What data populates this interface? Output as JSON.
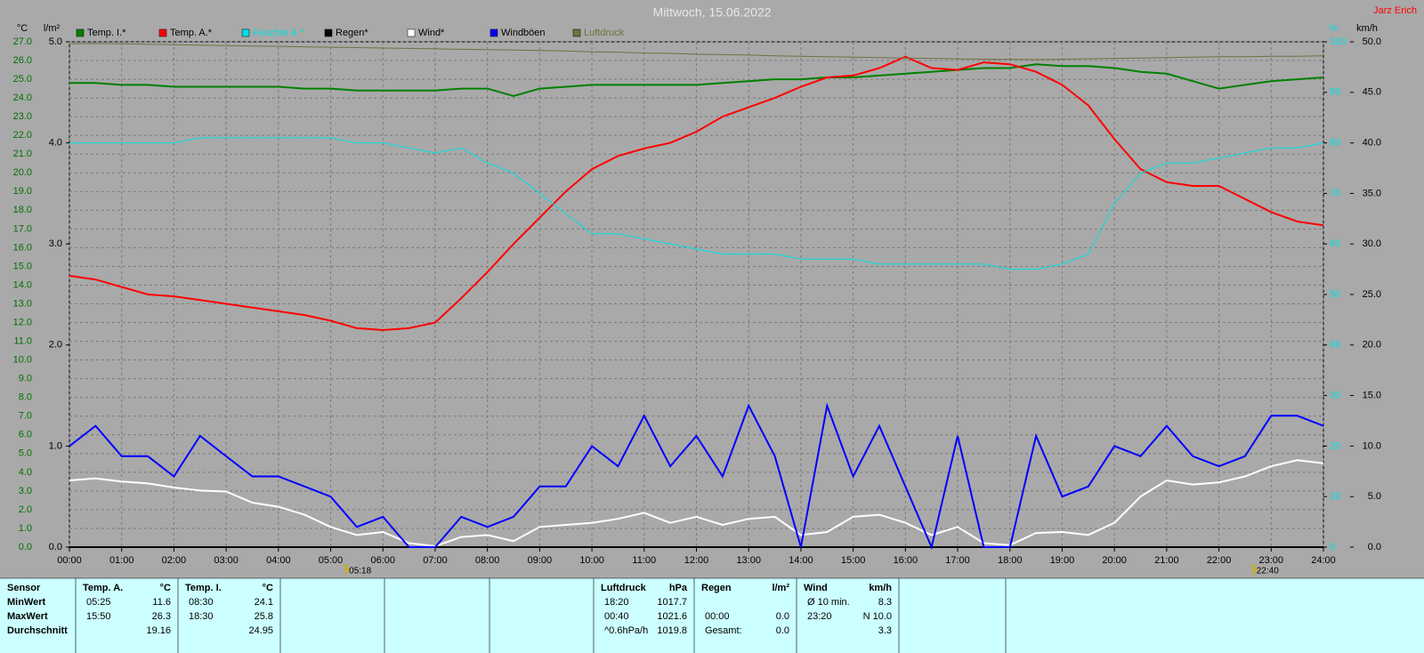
{
  "chart_data": {
    "type": "line",
    "title": "Mittwoch, 15.06.2022",
    "author": "Jarz Erich",
    "x": [
      0,
      0.5,
      1,
      1.5,
      2,
      2.5,
      3,
      3.5,
      4,
      4.5,
      5,
      5.5,
      6,
      6.5,
      7,
      7.5,
      8,
      8.5,
      9,
      9.5,
      10,
      10.5,
      11,
      11.5,
      12,
      12.5,
      13,
      13.5,
      14,
      14.5,
      15,
      15.5,
      16,
      16.5,
      17,
      17.5,
      18,
      18.5,
      19,
      19.5,
      20,
      20.5,
      21,
      21.5,
      22,
      22.5,
      23,
      23.5,
      24
    ],
    "xlim": [
      0,
      24
    ],
    "xticks": [
      {
        "value": 0,
        "label": "00:00"
      },
      {
        "value": 1,
        "label": "01:00"
      },
      {
        "value": 2,
        "label": "02:00"
      },
      {
        "value": 3,
        "label": "03:00"
      },
      {
        "value": 4,
        "label": "04:00"
      },
      {
        "value": 5,
        "label": "05:00"
      },
      {
        "value": 6,
        "label": "06:00"
      },
      {
        "value": 7,
        "label": "07:00"
      },
      {
        "value": 8,
        "label": "08:00"
      },
      {
        "value": 9,
        "label": "09:00"
      },
      {
        "value": 10,
        "label": "10:00"
      },
      {
        "value": 11,
        "label": "11:00"
      },
      {
        "value": 12,
        "label": "12:00"
      },
      {
        "value": 13,
        "label": "13:00"
      },
      {
        "value": 14,
        "label": "14:00"
      },
      {
        "value": 15,
        "label": "15:00"
      },
      {
        "value": 16,
        "label": "16:00"
      },
      {
        "value": 17,
        "label": "17:00"
      },
      {
        "value": 18,
        "label": "18:00"
      },
      {
        "value": 19,
        "label": "19:00"
      },
      {
        "value": 20,
        "label": "20:00"
      },
      {
        "value": 21,
        "label": "21:00"
      },
      {
        "value": 22,
        "label": "22:00"
      },
      {
        "value": 23,
        "label": "23:00"
      },
      {
        "value": 24,
        "label": "24:00"
      }
    ],
    "markers": [
      {
        "value": 5.3,
        "label": "05:18"
      },
      {
        "value": 22.667,
        "label": "22:40"
      }
    ],
    "grid": true,
    "axes": {
      "temp": {
        "label": "°C",
        "color": "#007000",
        "lim": [
          0,
          27
        ],
        "ticks": [
          {
            "value": 0,
            "label": "0.0"
          },
          {
            "value": 1,
            "label": "1.0"
          },
          {
            "value": 2,
            "label": "2.0"
          },
          {
            "value": 3,
            "label": "3.0"
          },
          {
            "value": 4,
            "label": "4.0"
          },
          {
            "value": 5,
            "label": "5.0"
          },
          {
            "value": 6,
            "label": "6.0"
          },
          {
            "value": 7,
            "label": "7.0"
          },
          {
            "value": 8,
            "label": "8.0"
          },
          {
            "value": 9,
            "label": "9.0"
          },
          {
            "value": 10,
            "label": "10.0"
          },
          {
            "value": 11,
            "label": "11.0"
          },
          {
            "value": 12,
            "label": "12.0"
          },
          {
            "value": 13,
            "label": "13.0"
          },
          {
            "value": 14,
            "label": "14.0"
          },
          {
            "value": 15,
            "label": "15.0"
          },
          {
            "value": 16,
            "label": "16.0"
          },
          {
            "value": 17,
            "label": "17.0"
          },
          {
            "value": 18,
            "label": "18.0"
          },
          {
            "value": 19,
            "label": "19.0"
          },
          {
            "value": 20,
            "label": "20.0"
          },
          {
            "value": 21,
            "label": "21.0"
          },
          {
            "value": 22,
            "label": "22.0"
          },
          {
            "value": 23,
            "label": "23.0"
          },
          {
            "value": 24,
            "label": "24.0"
          },
          {
            "value": 25,
            "label": "25.0"
          },
          {
            "value": 26,
            "label": "26.0"
          },
          {
            "value": 27,
            "label": "27.0"
          }
        ]
      },
      "rain": {
        "label": "l/m²",
        "color": "#000000",
        "lim": [
          0,
          5
        ],
        "ticks": [
          {
            "value": 0,
            "label": "0.0"
          },
          {
            "value": 1,
            "label": "1.0"
          },
          {
            "value": 2,
            "label": "2.0"
          },
          {
            "value": 3,
            "label": "3.0"
          },
          {
            "value": 4,
            "label": "4.0"
          },
          {
            "value": 5,
            "label": "5.0"
          }
        ]
      },
      "hum": {
        "label": "%",
        "color": "#00e0e0",
        "lim": [
          0,
          100
        ],
        "ticks": [
          0,
          10,
          20,
          30,
          40,
          50,
          60,
          70,
          80,
          90,
          100
        ]
      },
      "wind": {
        "label": "km/h",
        "color": "#000000",
        "lim": [
          0,
          50
        ],
        "ticks": [
          {
            "value": 0,
            "label": "0.0"
          },
          {
            "value": 5,
            "label": "5.0"
          },
          {
            "value": 10,
            "label": "10.0"
          },
          {
            "value": 15,
            "label": "15.0"
          },
          {
            "value": 20,
            "label": "20.0"
          },
          {
            "value": 25,
            "label": "25.0"
          },
          {
            "value": 30,
            "label": "30.0"
          },
          {
            "value": 35,
            "label": "35.0"
          },
          {
            "value": 40,
            "label": "40.0"
          },
          {
            "value": 45,
            "label": "45.0"
          },
          {
            "value": 50,
            "label": "50.0"
          }
        ]
      },
      "pressure": {
        "lim": [
          900,
          1022
        ]
      }
    },
    "series": [
      {
        "name": "Temp. I.*",
        "color": "#008000",
        "axis": "temp",
        "values": [
          24.8,
          24.8,
          24.7,
          24.7,
          24.6,
          24.6,
          24.6,
          24.6,
          24.6,
          24.5,
          24.5,
          24.4,
          24.4,
          24.4,
          24.4,
          24.5,
          24.5,
          24.1,
          24.5,
          24.6,
          24.7,
          24.7,
          24.7,
          24.7,
          24.7,
          24.8,
          24.9,
          25.0,
          25.0,
          25.1,
          25.1,
          25.2,
          25.3,
          25.4,
          25.5,
          25.6,
          25.6,
          25.8,
          25.7,
          25.7,
          25.6,
          25.4,
          25.3,
          24.9,
          24.5,
          24.7,
          24.9,
          25.0,
          25.1
        ]
      },
      {
        "name": "Temp. A.*",
        "color": "#ff0000",
        "axis": "temp",
        "values": [
          14.5,
          14.3,
          13.9,
          13.5,
          13.4,
          13.2,
          13.0,
          12.8,
          12.6,
          12.4,
          12.1,
          11.7,
          11.6,
          11.7,
          12.0,
          13.3,
          14.7,
          16.2,
          17.6,
          19.0,
          20.2,
          20.9,
          21.3,
          21.6,
          22.2,
          23.0,
          23.5,
          24.0,
          24.6,
          25.1,
          25.2,
          25.6,
          26.2,
          25.6,
          25.5,
          25.9,
          25.8,
          25.4,
          24.7,
          23.6,
          21.8,
          20.2,
          19.5,
          19.3,
          19.3,
          18.6,
          17.9,
          17.4,
          17.2
        ]
      },
      {
        "name": "Feuchte A.*",
        "color": "#00e0e0",
        "axis": "hum",
        "values": [
          80,
          80,
          80,
          80,
          80,
          81,
          81,
          81,
          81,
          81,
          81,
          80,
          80,
          79,
          78,
          79,
          76,
          74,
          70,
          66,
          62,
          62,
          61,
          60,
          59,
          58,
          58,
          58,
          57,
          57,
          57,
          56,
          56,
          56,
          56,
          56,
          55,
          55,
          56,
          58,
          68,
          74,
          76,
          76,
          77,
          78,
          79,
          79,
          80
        ]
      },
      {
        "name": "Regen*",
        "color": "#000000",
        "axis": "rain",
        "values": [
          0,
          0,
          0,
          0,
          0,
          0,
          0,
          0,
          0,
          0,
          0,
          0,
          0,
          0,
          0,
          0,
          0,
          0,
          0,
          0,
          0,
          0,
          0,
          0,
          0,
          0,
          0,
          0,
          0,
          0,
          0,
          0,
          0,
          0,
          0,
          0,
          0,
          0,
          0,
          0,
          0,
          0,
          0,
          0,
          0,
          0,
          0,
          0,
          0
        ]
      },
      {
        "name": "Wind*",
        "color": "#ffffff",
        "axis": "wind",
        "values": [
          6.6,
          6.8,
          6.5,
          6.3,
          5.9,
          5.6,
          5.5,
          4.4,
          4.0,
          3.2,
          2.0,
          1.2,
          1.5,
          0.4,
          0.1,
          1.0,
          1.2,
          0.6,
          2.0,
          2.2,
          2.4,
          2.8,
          3.4,
          2.4,
          3.0,
          2.2,
          2.8,
          3.0,
          1.2,
          1.5,
          3.0,
          3.2,
          2.4,
          1.2,
          2.0,
          0.4,
          0.2,
          1.4,
          1.5,
          1.2,
          2.4,
          5.0,
          6.6,
          6.2,
          6.4,
          7.0,
          8.0,
          8.6,
          8.3
        ]
      },
      {
        "name": "Windböen",
        "color": "#0000ff",
        "axis": "wind",
        "values": [
          10,
          12,
          9,
          9,
          7,
          11,
          9,
          7,
          7,
          6,
          5,
          2,
          3,
          0,
          0,
          3,
          2,
          3,
          6,
          6,
          10,
          8,
          13,
          8,
          11,
          7,
          14,
          9,
          0,
          14,
          7,
          12,
          6,
          0,
          11,
          0,
          0,
          11,
          5,
          6,
          10,
          9,
          12,
          9,
          8,
          9,
          13,
          13,
          12
        ]
      },
      {
        "name": "Luftdruck",
        "color": "#707040",
        "axis": "pressure",
        "values": [
          1021.5,
          1021.6,
          1021.5,
          1021.4,
          1021.3,
          1021.2,
          1021.1,
          1021.0,
          1020.9,
          1020.8,
          1020.7,
          1020.6,
          1020.5,
          1020.4,
          1020.3,
          1020.2,
          1020.1,
          1020.0,
          1019.9,
          1019.8,
          1019.6,
          1019.5,
          1019.3,
          1019.2,
          1019.0,
          1018.9,
          1018.8,
          1018.6,
          1018.5,
          1018.4,
          1018.3,
          1018.2,
          1018.1,
          1018.0,
          1017.9,
          1017.8,
          1017.8,
          1017.7,
          1017.8,
          1017.9,
          1018.0,
          1018.1,
          1018.2,
          1018.3,
          1018.4,
          1018.4,
          1018.5,
          1018.5,
          1018.6
        ]
      }
    ]
  },
  "table": {
    "row_labels": [
      "Sensor",
      "MinWert",
      "MaxWert",
      "Durchschnitt"
    ],
    "blocks": [
      {
        "name": "Temp. A.",
        "unit": "°C",
        "rows": [
          [
            "05:25",
            "11.6"
          ],
          [
            "15:50",
            "26.3"
          ],
          [
            null,
            "19.16"
          ]
        ]
      },
      {
        "name": "Temp. I.",
        "unit": "°C",
        "rows": [
          [
            "08:30",
            "24.1"
          ],
          [
            "18:30",
            "25.8"
          ],
          [
            null,
            "24.95"
          ]
        ]
      },
      {
        "name": "Luftdruck",
        "unit": "hPa",
        "rows": [
          [
            "18:20",
            "1017.7"
          ],
          [
            "00:40",
            "1021.6"
          ],
          [
            "^0.6hPa/h",
            "1019.8"
          ]
        ]
      },
      {
        "name": "Regen",
        "unit": "l/m²",
        "rows": [
          [
            null,
            null
          ],
          [
            "00:00",
            "0.0"
          ],
          [
            "Gesamt:",
            "0.0"
          ]
        ]
      },
      {
        "name": "Wind",
        "unit": "km/h",
        "rows": [
          [
            "Ø 10 min.",
            "8.3"
          ],
          [
            "23:20",
            "N 10.0"
          ],
          [
            null,
            "3.3"
          ]
        ]
      }
    ]
  }
}
